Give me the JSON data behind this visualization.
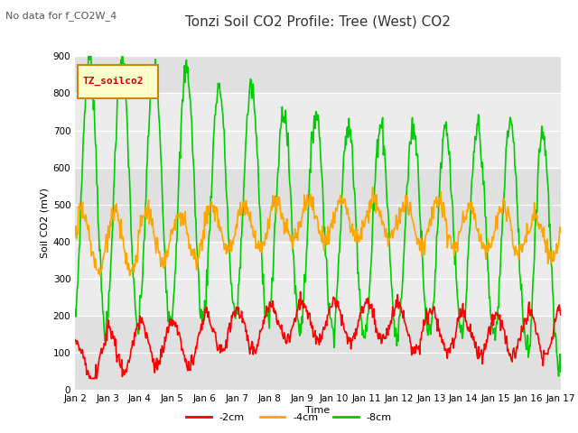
{
  "title": "Tonzi Soil CO2 Profile: Tree (West) CO2",
  "subtitle": "No data for f_CO2W_4",
  "ylabel": "Soil CO2 (mV)",
  "xlabel": "Time",
  "legend_label": "TZ_soilco2",
  "ylim": [
    0,
    900
  ],
  "xlim": [
    0,
    360
  ],
  "x_tick_labels": [
    "Jan 2",
    "Jan 3",
    "Jan 4",
    "Jan 5",
    "Jan 6",
    "Jan 7",
    "Jan 8",
    "Jan 9",
    "Jan 10",
    "Jan 11",
    "Jan 12",
    "Jan 13",
    "Jan 14",
    "Jan 15",
    "Jan 16",
    "Jan 17"
  ],
  "x_tick_positions": [
    0,
    24,
    48,
    72,
    96,
    120,
    144,
    168,
    192,
    216,
    240,
    264,
    288,
    312,
    336,
    360
  ],
  "line_colors": {
    "neg2cm": "#ff0000",
    "neg4cm": "#ffa500",
    "neg8cm": "#00cc00"
  },
  "line_widths": {
    "neg2cm": 1.2,
    "neg4cm": 1.2,
    "neg8cm": 1.2
  },
  "background_color": "#ffffff",
  "plot_bg_light": "#ebebeb",
  "plot_bg_dark": "#d8d8d8",
  "title_fontsize": 11,
  "subtitle_fontsize": 8,
  "axis_fontsize": 8,
  "tick_fontsize": 7.5,
  "legend_fontsize": 8
}
